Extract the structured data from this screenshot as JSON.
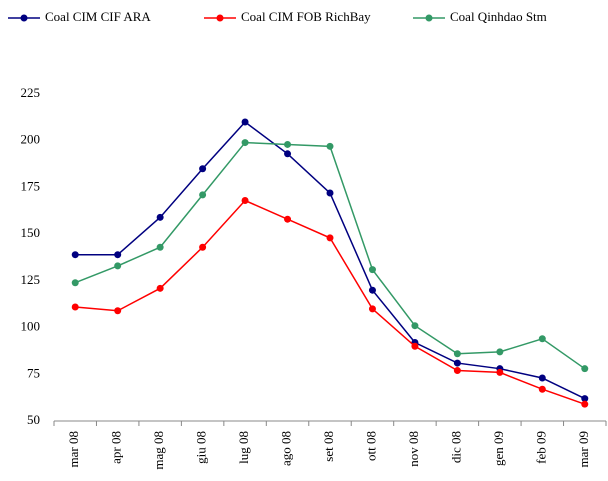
{
  "chart_data": {
    "type": "line",
    "categories": [
      "mar 08",
      "apr 08",
      "mag 08",
      "giu 08",
      "lug 08",
      "ago 08",
      "set 08",
      "ott 08",
      "nov 08",
      "dic 08",
      "gen 09",
      "feb 09",
      "mar 09"
    ],
    "series": [
      {
        "name": "Coal CIM CIF ARA",
        "color": "#000080",
        "values": [
          139,
          139,
          159,
          185,
          210,
          193,
          172,
          120,
          92,
          81,
          78,
          73,
          62
        ]
      },
      {
        "name": "Coal CIM FOB RichBay",
        "color": "#ff0000",
        "values": [
          111,
          109,
          121,
          143,
          168,
          158,
          148,
          110,
          90,
          77,
          76,
          67,
          59
        ]
      },
      {
        "name": "Coal Qinhdao Stm",
        "color": "#339966",
        "values": [
          124,
          133,
          143,
          171,
          199,
          198,
          197,
          131,
          101,
          86,
          87,
          94,
          78
        ]
      }
    ],
    "ylim": [
      50,
      225
    ],
    "yticks": [
      50,
      75,
      100,
      125,
      150,
      175,
      200,
      225
    ],
    "grid": false,
    "legend": "top"
  }
}
